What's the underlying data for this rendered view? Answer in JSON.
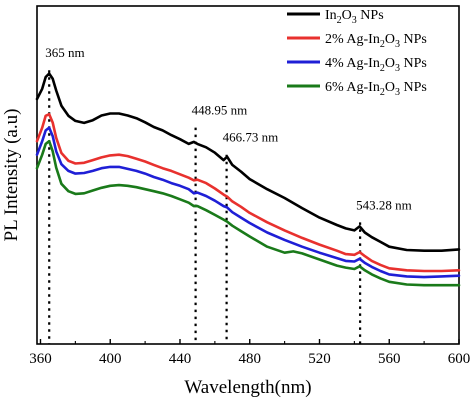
{
  "chart_data": {
    "type": "line",
    "xlabel": "Wavelength(nm)",
    "ylabel": "PL Intensity (a.u)",
    "xlim": [
      358,
      600
    ],
    "ylim": [
      0,
      100
    ],
    "xticks": [
      360,
      400,
      440,
      480,
      520,
      560,
      600
    ],
    "show_yticks": false,
    "grid": false,
    "legend": {
      "position": "top-right",
      "entries": [
        {
          "pre": "In",
          "sub1": "2",
          "mid": "O",
          "sub2": "3",
          "post": " NPs"
        },
        {
          "pre": "2% Ag-In",
          "sub1": "2",
          "mid": "O",
          "sub2": "3",
          "post": " NPs"
        },
        {
          "pre": "4% Ag-In",
          "sub1": "2",
          "mid": "O",
          "sub2": "3",
          "post": " NPs"
        },
        {
          "pre": "6% Ag-In",
          "sub1": "2",
          "mid": "O",
          "sub2": "3",
          "post": " NPs"
        }
      ]
    },
    "annotations": [
      {
        "label": "365 nm",
        "x": 365,
        "line_from": 81,
        "line_to": 0
      },
      {
        "label": "448.95 nm",
        "x": 448.95,
        "line_from": 64,
        "line_to": 0
      },
      {
        "label": "466.73 nm",
        "x": 466.73,
        "line_from": 56,
        "line_to": 0
      },
      {
        "label": "543.28 nm",
        "x": 543.28,
        "line_from": 36,
        "line_to": 0
      }
    ],
    "series": [
      {
        "color": "#000000",
        "x": [
          358,
          361,
          363,
          365,
          367,
          369,
          372,
          376,
          380,
          385,
          390,
          395,
          400,
          405,
          410,
          415,
          420,
          425,
          430,
          435,
          440,
          445,
          448,
          450,
          455,
          460,
          465,
          467,
          470,
          475,
          480,
          490,
          500,
          510,
          520,
          530,
          535,
          540,
          543,
          546,
          550,
          555,
          560,
          570,
          580,
          590,
          600
        ],
        "y": [
          72.5,
          75.5,
          79,
          80,
          78.5,
          75,
          70.5,
          67.5,
          66,
          65.4,
          66.2,
          67.6,
          68.2,
          68.2,
          67.6,
          66.8,
          65.6,
          64.2,
          63.2,
          61.8,
          60.6,
          59.2,
          59.8,
          59.2,
          58.2,
          56.6,
          54.4,
          55.4,
          53,
          51,
          48.8,
          45.8,
          43.2,
          40.2,
          37.4,
          35.2,
          34.2,
          33.6,
          34.8,
          33,
          31.6,
          30.2,
          28.8,
          27.8,
          27.6,
          27.6,
          28
        ]
      },
      {
        "color": "#e8312e",
        "x": [
          358,
          361,
          363,
          365,
          367,
          369,
          372,
          376,
          380,
          385,
          390,
          395,
          400,
          405,
          410,
          415,
          420,
          425,
          430,
          435,
          440,
          445,
          448,
          450,
          455,
          460,
          465,
          467,
          470,
          475,
          480,
          490,
          500,
          510,
          520,
          530,
          535,
          540,
          543,
          546,
          550,
          555,
          560,
          570,
          580,
          590,
          600
        ],
        "y": [
          60,
          64,
          67.5,
          68,
          65.5,
          61,
          56.5,
          54.2,
          53.4,
          53.6,
          54.4,
          55.2,
          55.8,
          56,
          55.6,
          54.8,
          54,
          53,
          52,
          51.2,
          50.2,
          49.2,
          48.4,
          48.6,
          47.6,
          46,
          44.2,
          43.6,
          42.2,
          40.6,
          38.8,
          36,
          33.6,
          31.4,
          29.4,
          27.6,
          26.6,
          26.4,
          27.2,
          26,
          24.6,
          23.4,
          22.4,
          21.8,
          21.6,
          21.6,
          21.8
        ]
      },
      {
        "color": "#1f1fd6",
        "x": [
          358,
          361,
          363,
          365,
          367,
          369,
          372,
          376,
          380,
          385,
          390,
          395,
          400,
          405,
          410,
          415,
          420,
          425,
          430,
          435,
          440,
          445,
          448,
          450,
          455,
          460,
          465,
          467,
          470,
          475,
          480,
          490,
          500,
          510,
          520,
          530,
          535,
          540,
          543,
          546,
          550,
          555,
          560,
          570,
          580,
          590,
          600
        ],
        "y": [
          56,
          60,
          63.2,
          64,
          61.5,
          57,
          53.2,
          51.2,
          50.4,
          50.6,
          51.2,
          52,
          52.4,
          52.4,
          51.8,
          51.2,
          50.4,
          49.4,
          48.6,
          47.6,
          46.8,
          45.8,
          44.6,
          44.8,
          43.8,
          42.4,
          40.8,
          40.4,
          39,
          37.4,
          35.8,
          33,
          30.8,
          28.8,
          27,
          25.4,
          24.6,
          24.4,
          25.2,
          24,
          22.8,
          21.6,
          20.6,
          20,
          19.8,
          20,
          20.2
        ]
      },
      {
        "color": "#1a7a1a",
        "x": [
          358,
          361,
          363,
          365,
          367,
          369,
          372,
          376,
          380,
          385,
          390,
          395,
          400,
          405,
          410,
          415,
          420,
          425,
          430,
          435,
          440,
          445,
          448,
          450,
          455,
          460,
          465,
          467,
          470,
          475,
          480,
          490,
          500,
          505,
          510,
          520,
          530,
          535,
          540,
          543,
          546,
          550,
          555,
          560,
          570,
          580,
          590,
          600
        ],
        "y": [
          52,
          56,
          59.2,
          60,
          57,
          52.2,
          47.4,
          45.2,
          44.4,
          44.6,
          45.4,
          46.2,
          46.8,
          47,
          46.8,
          46.4,
          45.8,
          45.2,
          44.6,
          43.8,
          42.8,
          41.8,
          40.8,
          40.8,
          39.6,
          38.2,
          36.8,
          36.2,
          35,
          33.4,
          31.8,
          28.8,
          27,
          27.4,
          26.8,
          25,
          23.2,
          22.6,
          22.2,
          23,
          21.8,
          20.6,
          19.4,
          18.4,
          17.6,
          17.4,
          17.4,
          17.4
        ]
      }
    ]
  }
}
